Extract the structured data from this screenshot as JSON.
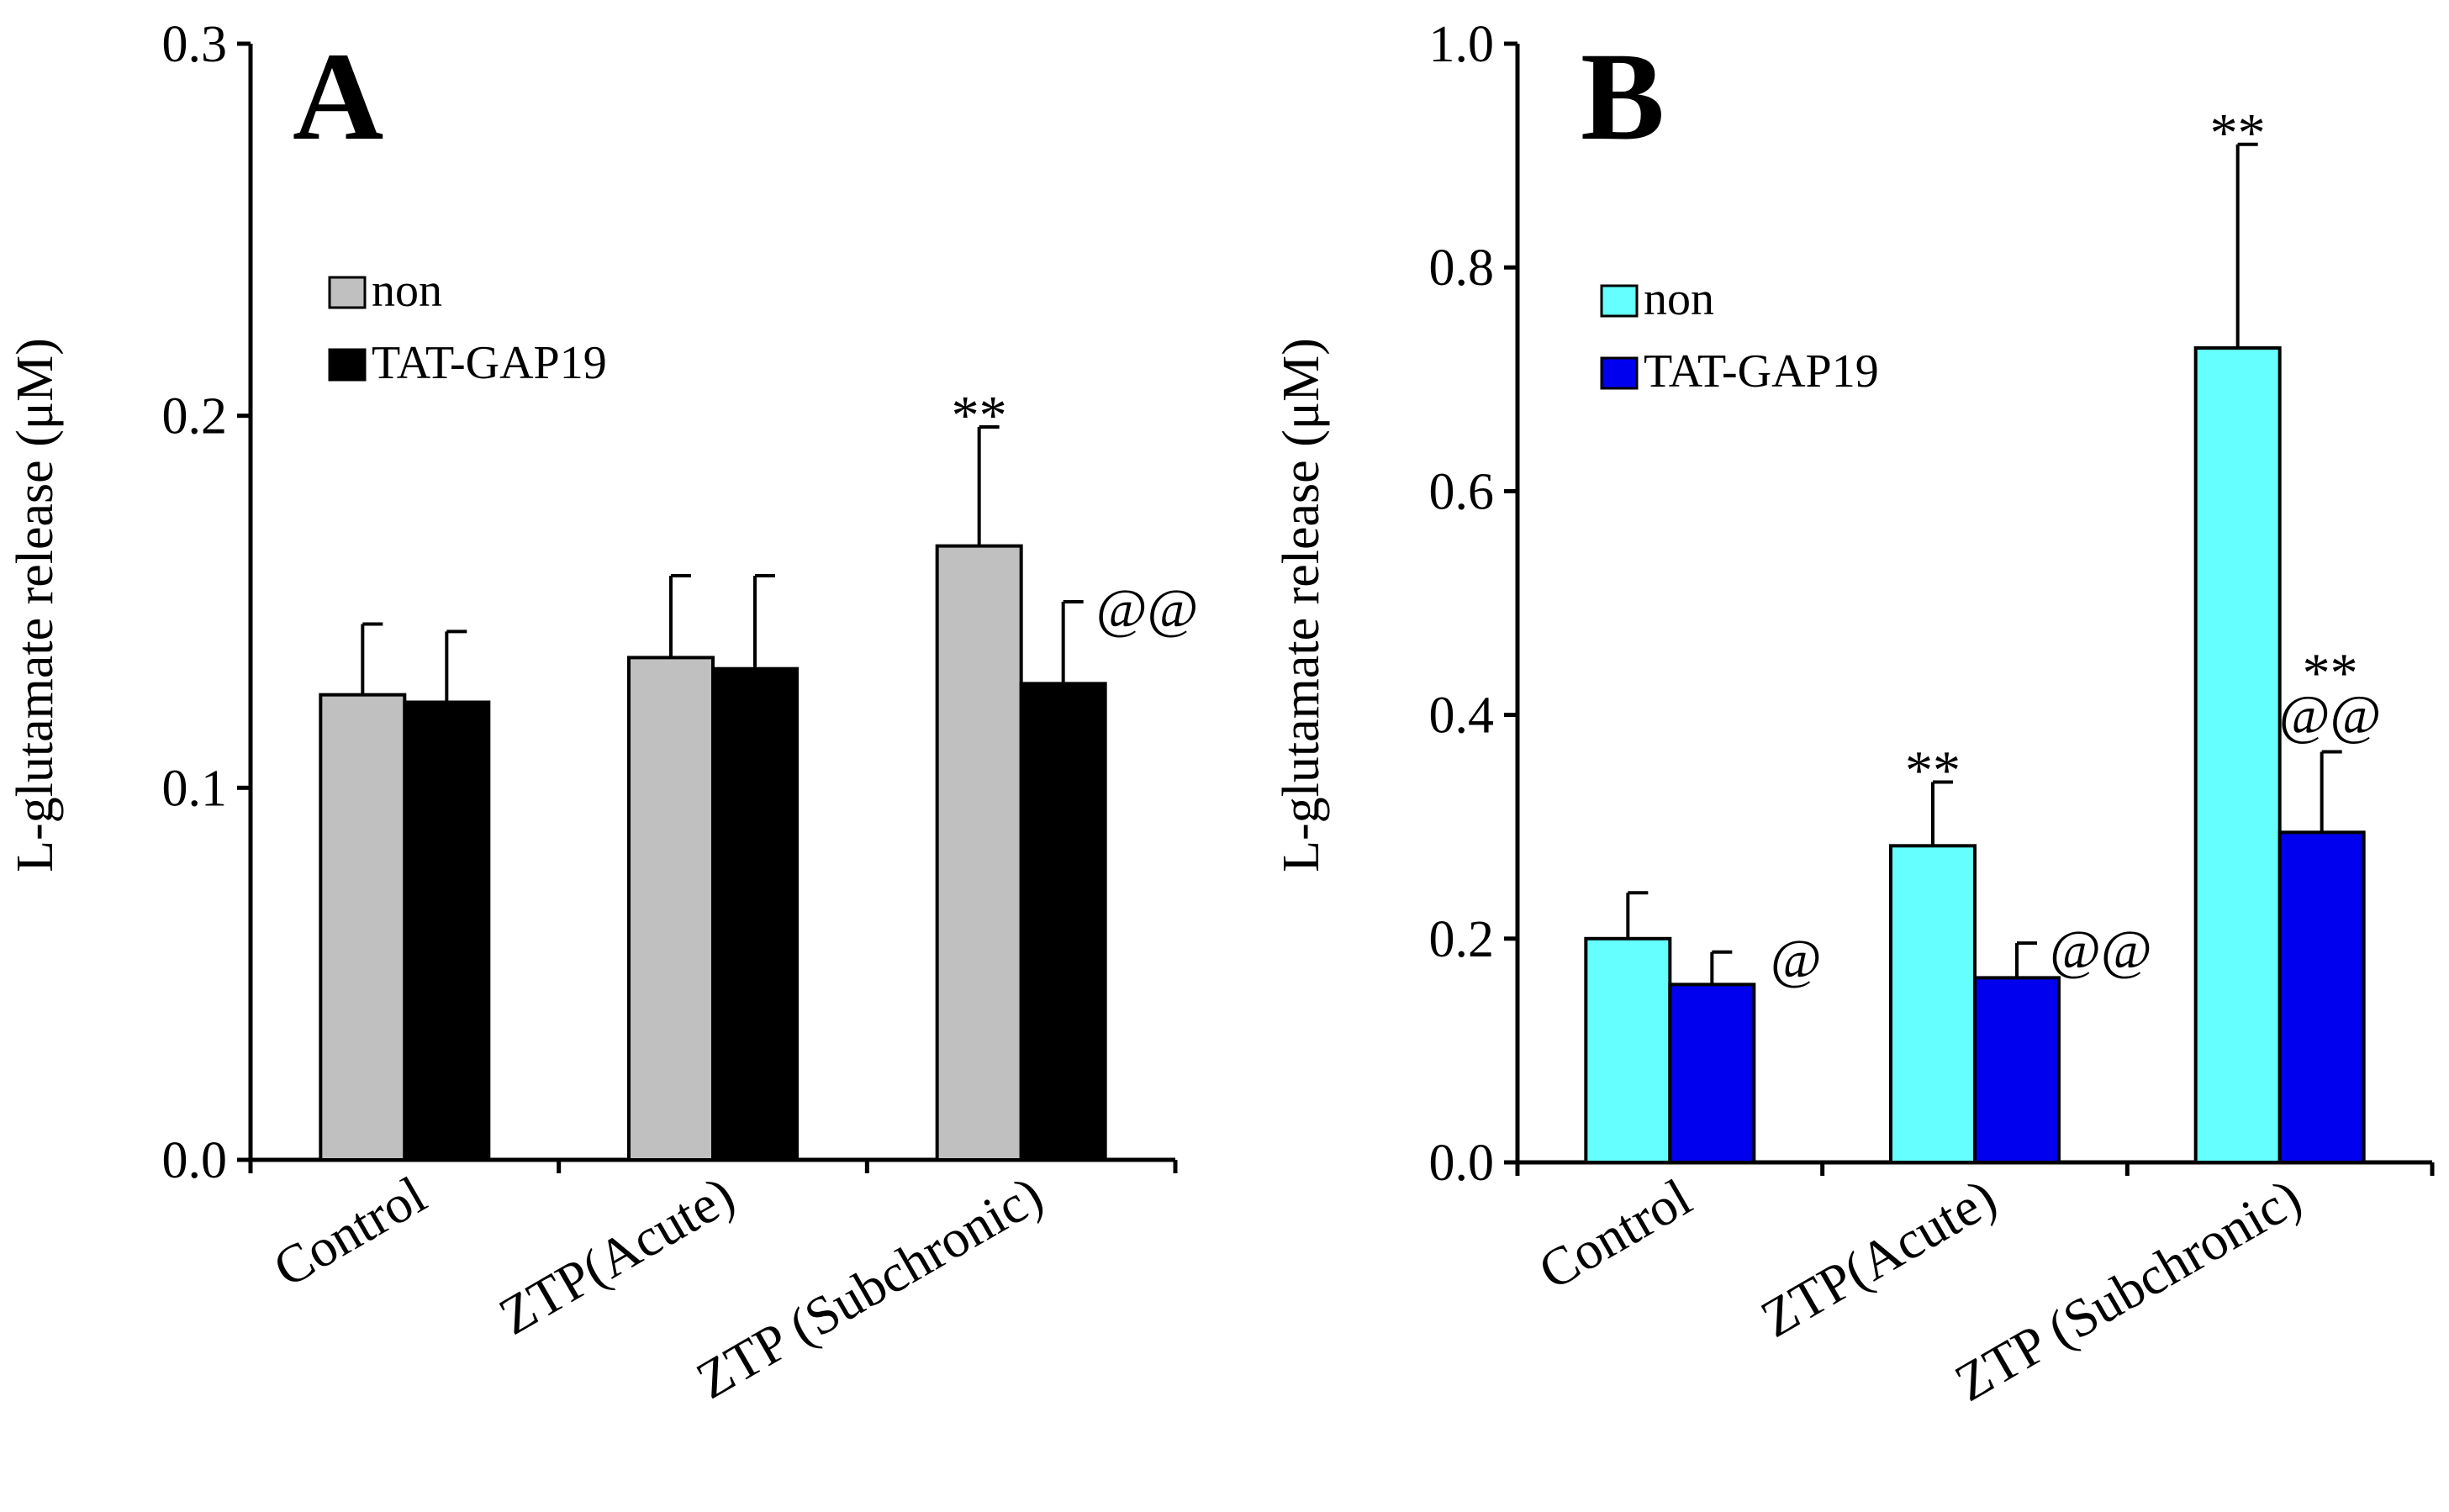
{
  "chart_data": [
    {
      "type": "bar",
      "panel_label": "A",
      "ylabel": "L-glutamate release (μM)",
      "ylim": [
        0,
        0.3
      ],
      "yticks": [
        "0.0",
        "0.1",
        "0.2",
        "0.3"
      ],
      "ytick_values": [
        0,
        0.1,
        0.2,
        0.3
      ],
      "categories": [
        "Control",
        "ZTP(Acute)",
        "ZTP (Subchronic)"
      ],
      "series": [
        {
          "name": "non",
          "color": "#c0c0c0",
          "values": [
            0.125,
            0.135,
            0.165
          ],
          "errors": [
            0.019,
            0.022,
            0.032
          ]
        },
        {
          "name": "TAT-GAP19",
          "color": "#000000",
          "values": [
            0.123,
            0.132,
            0.128
          ],
          "errors": [
            0.019,
            0.025,
            0.022
          ]
        }
      ],
      "annotations": [
        {
          "lines": [
            "**"
          ],
          "category": 2,
          "series": 0
        },
        {
          "lines": [
            "@@"
          ],
          "category": 2,
          "series": 1
        }
      ],
      "legend": [
        "non",
        "TAT-GAP19"
      ]
    },
    {
      "type": "bar",
      "panel_label": "B",
      "ylabel": "L-glutamate release (μM)",
      "ylim": [
        0,
        1.0
      ],
      "yticks": [
        "0.0",
        "0.2",
        "0.4",
        "0.6",
        "0.8",
        "1.0"
      ],
      "ytick_values": [
        0,
        0.2,
        0.4,
        0.6,
        0.8,
        1.0
      ],
      "categories": [
        "Control",
        "ZTP(Acute)",
        "ZTP (Subchronic)"
      ],
      "series": [
        {
          "name": "non",
          "color": "#66ffff",
          "values": [
            0.2,
            0.283,
            0.728
          ],
          "errors": [
            0.041,
            0.057,
            0.182
          ]
        },
        {
          "name": "TAT-GAP19",
          "color": "#0000ee",
          "values": [
            0.159,
            0.165,
            0.295
          ],
          "errors": [
            0.029,
            0.031,
            0.072
          ]
        }
      ],
      "annotations": [
        {
          "lines": [
            "@"
          ],
          "category": 0,
          "series": 1
        },
        {
          "lines": [
            "**"
          ],
          "category": 1,
          "series": 0
        },
        {
          "lines": [
            "@@"
          ],
          "category": 1,
          "series": 1
        },
        {
          "lines": [
            "**"
          ],
          "category": 2,
          "series": 0
        },
        {
          "lines": [
            "**",
            "@@"
          ],
          "category": 2,
          "series": 1
        }
      ],
      "legend": [
        "non",
        "TAT-GAP19"
      ]
    }
  ]
}
